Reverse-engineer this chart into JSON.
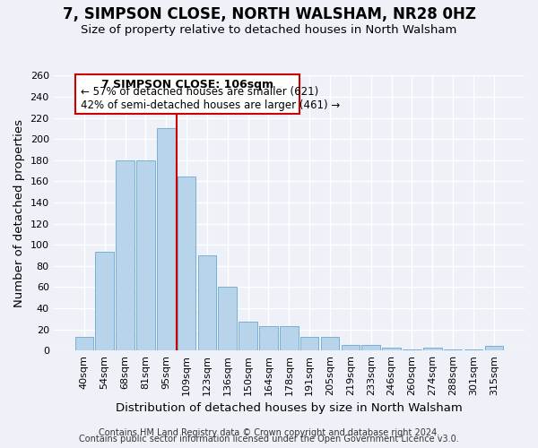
{
  "title": "7, SIMPSON CLOSE, NORTH WALSHAM, NR28 0HZ",
  "subtitle": "Size of property relative to detached houses in North Walsham",
  "xlabel": "Distribution of detached houses by size in North Walsham",
  "ylabel": "Number of detached properties",
  "bar_labels": [
    "40sqm",
    "54sqm",
    "68sqm",
    "81sqm",
    "95sqm",
    "109sqm",
    "123sqm",
    "136sqm",
    "150sqm",
    "164sqm",
    "178sqm",
    "191sqm",
    "205sqm",
    "219sqm",
    "233sqm",
    "246sqm",
    "260sqm",
    "274sqm",
    "288sqm",
    "301sqm",
    "315sqm"
  ],
  "bar_heights": [
    13,
    93,
    180,
    180,
    210,
    165,
    90,
    60,
    27,
    23,
    23,
    13,
    13,
    5,
    5,
    3,
    1,
    3,
    1,
    1,
    4
  ],
  "bar_color": "#b8d4ea",
  "bar_edge_color": "#7aaed4",
  "vline_color": "#cc0000",
  "annotation_title": "7 SIMPSON CLOSE: 106sqm",
  "annotation_line1": "← 57% of detached houses are smaller (621)",
  "annotation_line2": "42% of semi-detached houses are larger (461) →",
  "box_facecolor": "#ffffff",
  "box_edgecolor": "#cc0000",
  "ylim": [
    0,
    260
  ],
  "yticks": [
    0,
    20,
    40,
    60,
    80,
    100,
    120,
    140,
    160,
    180,
    200,
    220,
    240,
    260
  ],
  "footer1": "Contains HM Land Registry data © Crown copyright and database right 2024.",
  "footer2": "Contains public sector information licensed under the Open Government Licence v3.0.",
  "bg_color": "#eef2f8",
  "title_fontsize": 12,
  "subtitle_fontsize": 9.5,
  "axis_label_fontsize": 9.5,
  "tick_fontsize": 8,
  "footer_fontsize": 7
}
